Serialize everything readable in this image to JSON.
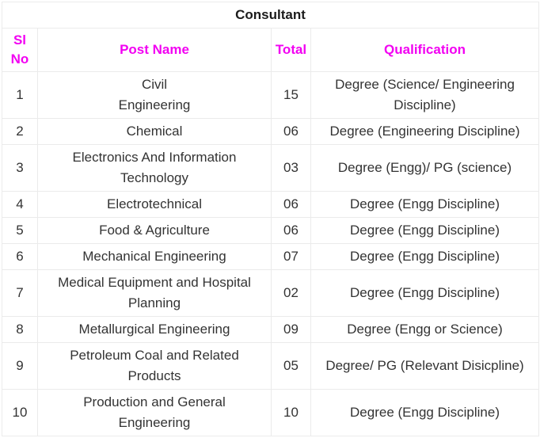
{
  "table": {
    "title": "Consultant",
    "columns": [
      {
        "label": "Sl\nNo"
      },
      {
        "label": "Post Name"
      },
      {
        "label": "Total"
      },
      {
        "label": "Qualification"
      }
    ],
    "rows": [
      {
        "sl_no": "1",
        "post_name": "Civil\nEngineering",
        "total": "15",
        "qualification": "Degree (Science/ Engineering\nDiscipline)"
      },
      {
        "sl_no": "2",
        "post_name": "Chemical",
        "total": "06",
        "qualification": "Degree (Engineering Discipline)"
      },
      {
        "sl_no": "3",
        "post_name": "Electronics And Information\nTechnology",
        "total": "03",
        "qualification": "Degree (Engg)/ PG (science)"
      },
      {
        "sl_no": "4",
        "post_name": "Electrotechnical",
        "total": "06",
        "qualification": "Degree (Engg Discipline)"
      },
      {
        "sl_no": "5",
        "post_name": "Food & Agriculture",
        "total": "06",
        "qualification": "Degree (Engg Discipline)"
      },
      {
        "sl_no": "6",
        "post_name": "Mechanical Engineering",
        "total": "07",
        "qualification": "Degree (Engg Discipline)"
      },
      {
        "sl_no": "7",
        "post_name": "Medical Equipment and Hospital\nPlanning",
        "total": "02",
        "qualification": "Degree (Engg Discipline)"
      },
      {
        "sl_no": "8",
        "post_name": "Metallurgical Engineering",
        "total": "09",
        "qualification": "Degree (Engg or Science)"
      },
      {
        "sl_no": "9",
        "post_name": "Petroleum Coal and Related\nProducts",
        "total": "05",
        "qualification": "Degree/ PG (Relevant Disicpline)"
      },
      {
        "sl_no": "10",
        "post_name": "Production and General\nEngineering",
        "total": "10",
        "qualification": "Degree (Engg Discipline)"
      }
    ]
  },
  "colors": {
    "header_text": "#f200f2",
    "title_text": "#1b1b1b",
    "body_text": "#333333",
    "border": "#ebebeb"
  }
}
